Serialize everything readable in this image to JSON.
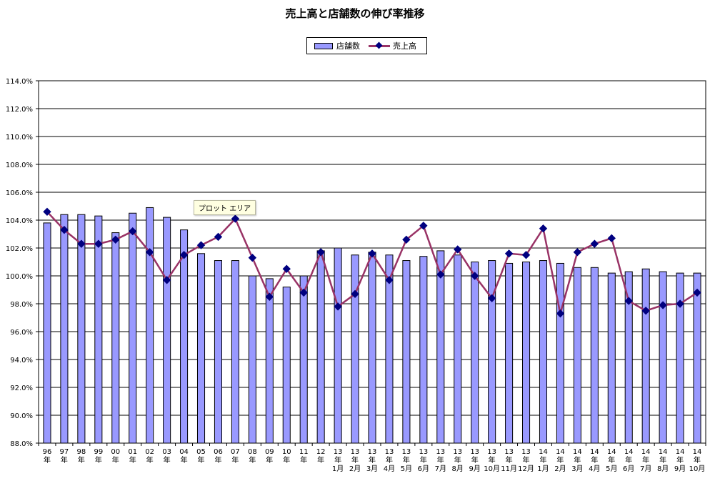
{
  "chart_data": {
    "type": "bar",
    "title": "売上高と店舗数の伸び率推移",
    "categories": [
      "96年",
      "97年",
      "98年",
      "99年",
      "00年",
      "01年",
      "02年",
      "03年",
      "04年",
      "05年",
      "06年",
      "07年",
      "08年",
      "09年",
      "10年",
      "11年",
      "12年",
      "13年1月",
      "13年2月",
      "13年3月",
      "13年4月",
      "13年5月",
      "13年6月",
      "13年7月",
      "13年8月",
      "13年9月",
      "13年10月",
      "13年11月",
      "13年12月",
      "14年1月",
      "14年2月",
      "14年3月",
      "14年4月",
      "14年5月",
      "14年6月",
      "14年7月",
      "14年8月",
      "14年9月",
      "14年10月"
    ],
    "category_labels": [
      [
        "96",
        "年"
      ],
      [
        "97",
        "年"
      ],
      [
        "98",
        "年"
      ],
      [
        "99",
        "年"
      ],
      [
        "00",
        "年"
      ],
      [
        "01",
        "年"
      ],
      [
        "02",
        "年"
      ],
      [
        "03",
        "年"
      ],
      [
        "04",
        "年"
      ],
      [
        "05",
        "年"
      ],
      [
        "06",
        "年"
      ],
      [
        "07",
        "年"
      ],
      [
        "08",
        "年"
      ],
      [
        "09",
        "年"
      ],
      [
        "10",
        "年"
      ],
      [
        "11",
        "年"
      ],
      [
        "12",
        "年"
      ],
      [
        "13",
        "年",
        "1月"
      ],
      [
        "13",
        "年",
        "2月"
      ],
      [
        "13",
        "年",
        "3月"
      ],
      [
        "13",
        "年",
        "4月"
      ],
      [
        "13",
        "年",
        "5月"
      ],
      [
        "13",
        "年",
        "6月"
      ],
      [
        "13",
        "年",
        "7月"
      ],
      [
        "13",
        "年",
        "8月"
      ],
      [
        "13",
        "年",
        "9月"
      ],
      [
        "13",
        "年",
        "10月"
      ],
      [
        "13",
        "年",
        "11月"
      ],
      [
        "13",
        "年",
        "12月"
      ],
      [
        "14",
        "年",
        "1月"
      ],
      [
        "14",
        "年",
        "2月"
      ],
      [
        "14",
        "年",
        "3月"
      ],
      [
        "14",
        "年",
        "4月"
      ],
      [
        "14",
        "年",
        "5月"
      ],
      [
        "14",
        "年",
        "6月"
      ],
      [
        "14",
        "年",
        "7月"
      ],
      [
        "14",
        "年",
        "8月"
      ],
      [
        "14",
        "年",
        "9月"
      ],
      [
        "14",
        "年",
        "10月"
      ]
    ],
    "series": [
      {
        "name": "店舗数",
        "type": "bar",
        "color": "#9999ff",
        "values": [
          103.8,
          104.4,
          104.4,
          104.3,
          103.1,
          104.5,
          104.9,
          104.2,
          103.3,
          101.6,
          101.1,
          101.1,
          100.0,
          99.8,
          99.2,
          100.0,
          101.8,
          102.0,
          101.5,
          101.7,
          101.5,
          101.1,
          101.4,
          101.8,
          101.5,
          101.0,
          101.1,
          100.9,
          101.0,
          101.1,
          100.9,
          100.6,
          100.6,
          100.2,
          100.3,
          100.5,
          100.3,
          100.2,
          100.2
        ]
      },
      {
        "name": "売上高",
        "type": "line",
        "color": "#993366",
        "marker_color": "#000080",
        "values": [
          104.6,
          103.3,
          102.3,
          102.3,
          102.6,
          103.2,
          101.7,
          99.7,
          101.5,
          102.2,
          102.8,
          104.1,
          101.3,
          98.5,
          100.5,
          98.8,
          101.7,
          97.8,
          98.7,
          101.6,
          99.7,
          102.6,
          103.6,
          100.1,
          101.9,
          100.0,
          98.4,
          101.6,
          101.5,
          103.4,
          97.3,
          101.7,
          102.3,
          102.7,
          98.2,
          97.5,
          97.9,
          98.0,
          98.8
        ]
      }
    ],
    "ylim": [
      88.0,
      114.0
    ],
    "yticks": [
      88.0,
      90.0,
      92.0,
      94.0,
      96.0,
      98.0,
      100.0,
      102.0,
      104.0,
      106.0,
      108.0,
      110.0,
      112.0,
      114.0
    ],
    "ytick_suffix": "%",
    "grid": true,
    "legend_position": "top-center",
    "legend": {
      "bar_label": "店舗数",
      "line_label": "売上高"
    },
    "tooltip_text": "プロット エリア"
  }
}
